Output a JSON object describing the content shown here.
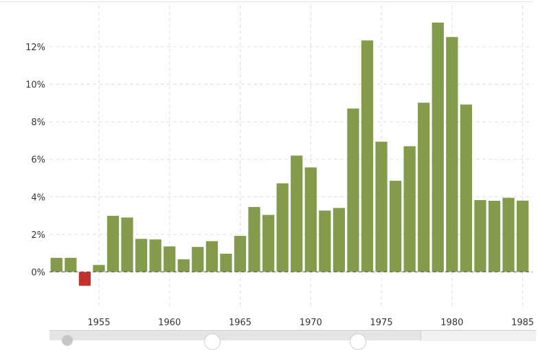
{
  "chart_data": {
    "type": "bar",
    "title": "",
    "xlabel": "",
    "ylabel": "",
    "x": [
      1952,
      1953,
      1954,
      1955,
      1956,
      1957,
      1958,
      1959,
      1960,
      1961,
      1962,
      1963,
      1964,
      1965,
      1966,
      1967,
      1968,
      1969,
      1970,
      1971,
      1972,
      1973,
      1974,
      1975,
      1976,
      1977,
      1978,
      1979,
      1980,
      1981,
      1982,
      1983,
      1984,
      1985
    ],
    "values": [
      0.75,
      0.75,
      -0.74,
      0.37,
      2.99,
      2.9,
      1.76,
      1.73,
      1.36,
      0.67,
      1.33,
      1.64,
      0.97,
      1.92,
      3.46,
      3.04,
      4.72,
      6.2,
      5.57,
      3.27,
      3.41,
      8.71,
      12.34,
      6.94,
      4.86,
      6.7,
      9.02,
      13.29,
      12.52,
      8.92,
      3.83,
      3.79,
      3.95,
      3.8
    ],
    "xticks": [
      1955,
      1960,
      1965,
      1970,
      1975,
      1980,
      1985
    ],
    "yticks": [
      0,
      2,
      4,
      6,
      8,
      10,
      12
    ],
    "ytick_labels": [
      "0%",
      "2%",
      "4%",
      "6%",
      "8%",
      "10%",
      "12%"
    ],
    "xlim": [
      1951.5,
      1985.7
    ],
    "ylim": [
      -2.0,
      14.2
    ],
    "grid": true,
    "legend": "none",
    "colors": {
      "positive": "#839b4a",
      "negative": "#c4312b",
      "grid": "#dcdcdc"
    }
  }
}
